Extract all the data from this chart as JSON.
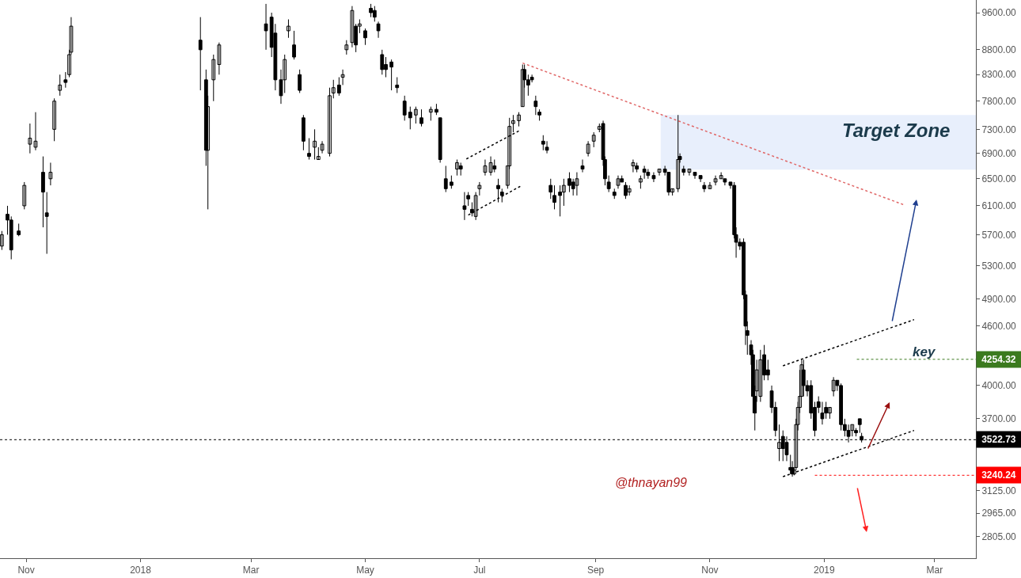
{
  "chart_data": {
    "type": "candlestick",
    "color": "#000000",
    "x": [
      "2017-10-19",
      "2017-10-22",
      "2017-10-24",
      "2017-10-28",
      "2017-10-31",
      "2017-11-03",
      "2017-11-06",
      "2017-11-10",
      "2017-11-12",
      "2017-11-14",
      "2017-11-16",
      "2017-11-19",
      "2017-11-22",
      "2017-11-24",
      "2017-11-25",
      "2018-02-02",
      "2018-02-05",
      "2018-02-06",
      "2018-02-09",
      "2018-02-12",
      "2018-03-09",
      "2018-03-12",
      "2018-03-14",
      "2018-03-17",
      "2018-03-19",
      "2018-03-21",
      "2018-03-24",
      "2018-03-27",
      "2018-03-29",
      "2018-04-01",
      "2018-04-04",
      "2018-04-06",
      "2018-04-08",
      "2018-04-12",
      "2018-04-14",
      "2018-04-17",
      "2018-04-19",
      "2018-04-21",
      "2018-04-24",
      "2018-04-26",
      "2018-04-28",
      "2018-05-01",
      "2018-05-04",
      "2018-05-06",
      "2018-05-08",
      "2018-05-10",
      "2018-05-12",
      "2018-05-15",
      "2018-05-18",
      "2018-05-22",
      "2018-05-25",
      "2018-05-28",
      "2018-05-31",
      "2018-06-05",
      "2018-06-08",
      "2018-06-10",
      "2018-06-13",
      "2018-06-16",
      "2018-06-19",
      "2018-06-21",
      "2018-06-23",
      "2018-06-25",
      "2018-06-27",
      "2018-06-29",
      "2018-07-01",
      "2018-07-04",
      "2018-07-07",
      "2018-07-09",
      "2018-07-11",
      "2018-07-13",
      "2018-07-16",
      "2018-07-17",
      "2018-07-19",
      "2018-07-22",
      "2018-07-24",
      "2018-07-25",
      "2018-07-27",
      "2018-07-29",
      "2018-07-31",
      "2018-08-02",
      "2018-08-04",
      "2018-08-06",
      "2018-08-08",
      "2018-08-10",
      "2018-08-13",
      "2018-08-15",
      "2018-08-18",
      "2018-08-20",
      "2018-08-22",
      "2018-08-25",
      "2018-08-28",
      "2018-08-31",
      "2018-09-03",
      "2018-09-05",
      "2018-09-06",
      "2018-09-08",
      "2018-09-11",
      "2018-09-13",
      "2018-09-15",
      "2018-09-17",
      "2018-09-19",
      "2018-09-21",
      "2018-09-23",
      "2018-09-25",
      "2018-09-27",
      "2018-09-29",
      "2018-10-02",
      "2018-10-05",
      "2018-10-08",
      "2018-10-10",
      "2018-10-12",
      "2018-10-15",
      "2018-10-16",
      "2018-10-18",
      "2018-10-21",
      "2018-10-24",
      "2018-10-27",
      "2018-10-29",
      "2018-11-01",
      "2018-11-04",
      "2018-11-07",
      "2018-11-09",
      "2018-11-12",
      "2018-11-14",
      "2018-11-15",
      "2018-11-17",
      "2018-11-19",
      "2018-11-20",
      "2018-11-21",
      "2018-11-23",
      "2018-11-24",
      "2018-11-25",
      "2018-11-26",
      "2018-11-28",
      "2018-11-30",
      "2018-12-02",
      "2018-12-04",
      "2018-12-06",
      "2018-12-08",
      "2018-12-10",
      "2018-12-12",
      "2018-12-14",
      "2018-12-15",
      "2018-12-16",
      "2018-12-17",
      "2018-12-18",
      "2018-12-19",
      "2018-12-20",
      "2018-12-21",
      "2018-12-23",
      "2018-12-25",
      "2018-12-27",
      "2018-12-29",
      "2018-12-31",
      "2019-01-02",
      "2019-01-04",
      "2019-01-06",
      "2019-01-08",
      "2019-01-10",
      "2019-01-12",
      "2019-01-14",
      "2019-01-16",
      "2019-01-18",
      "2019-01-20",
      "2019-01-21"
    ],
    "ohlc": [
      [
        5550,
        5750,
        5500,
        5700
      ],
      [
        5980,
        6100,
        5700,
        5900
      ],
      [
        5900,
        5950,
        5380,
        5500
      ],
      [
        5750,
        5850,
        5680,
        5700
      ],
      [
        6100,
        6450,
        6050,
        6400
      ],
      [
        7050,
        7400,
        6900,
        7150
      ],
      [
        7000,
        7600,
        6950,
        7100
      ],
      [
        6600,
        6850,
        5800,
        6300
      ],
      [
        6000,
        6300,
        5450,
        5950
      ],
      [
        6500,
        6750,
        6400,
        6600
      ],
      [
        7300,
        7850,
        7100,
        7800
      ],
      [
        8000,
        8300,
        7900,
        8100
      ],
      [
        8200,
        8350,
        8050,
        8150
      ],
      [
        8300,
        8800,
        8250,
        8700
      ],
      [
        8750,
        9500,
        8700,
        9300
      ],
      [
        9000,
        9500,
        8000,
        8800
      ],
      [
        8200,
        8400,
        6700,
        6950
      ],
      [
        6950,
        7900,
        6050,
        7700
      ],
      [
        8200,
        8700,
        7800,
        8600
      ],
      [
        8500,
        8950,
        8300,
        8900
      ],
      [
        9350,
        9800,
        8800,
        9200
      ],
      [
        9500,
        9600,
        8650,
        8850
      ],
      [
        9150,
        9350,
        8000,
        8200
      ],
      [
        8200,
        8400,
        7750,
        7900
      ],
      [
        8200,
        8700,
        7950,
        8600
      ],
      [
        9200,
        9450,
        9050,
        9300
      ],
      [
        8900,
        9200,
        8600,
        8650
      ],
      [
        8300,
        8400,
        7950,
        8000
      ],
      [
        7500,
        7550,
        6950,
        7100
      ],
      [
        6900,
        7150,
        6800,
        6850
      ],
      [
        7000,
        7300,
        6800,
        7100
      ],
      [
        6800,
        7000,
        6800,
        6850
      ],
      [
        6950,
        7100,
        6900,
        7050
      ],
      [
        6900,
        8050,
        6850,
        7900
      ],
      [
        7950,
        8200,
        7850,
        8050
      ],
      [
        8100,
        8250,
        7900,
        7950
      ],
      [
        8250,
        8400,
        8100,
        8300
      ],
      [
        8800,
        9000,
        8700,
        8900
      ],
      [
        8950,
        9750,
        8850,
        9650
      ],
      [
        9300,
        9350,
        8750,
        8900
      ],
      [
        9300,
        9450,
        9150,
        9350
      ],
      [
        9200,
        9250,
        8900,
        9050
      ],
      [
        9700,
        9800,
        9500,
        9600
      ],
      [
        9650,
        9750,
        9400,
        9500
      ],
      [
        9350,
        9400,
        9050,
        9200
      ],
      [
        8700,
        8800,
        8300,
        8400
      ],
      [
        8500,
        8650,
        8250,
        8400
      ],
      [
        8550,
        8600,
        8000,
        8450
      ],
      [
        8100,
        8250,
        7950,
        8050
      ],
      [
        7800,
        7900,
        7450,
        7550
      ],
      [
        7600,
        7700,
        7300,
        7500
      ],
      [
        7550,
        7700,
        7400,
        7650
      ],
      [
        7500,
        7650,
        7350,
        7400
      ],
      [
        7600,
        7700,
        7450,
        7650
      ],
      [
        7650,
        7750,
        7550,
        7600
      ],
      [
        7500,
        7500,
        6750,
        6800
      ],
      [
        6500,
        6700,
        6300,
        6350
      ],
      [
        6450,
        6550,
        6350,
        6400
      ],
      [
        6650,
        6800,
        6550,
        6750
      ],
      [
        6700,
        6750,
        6550,
        6650
      ],
      [
        6100,
        6300,
        5900,
        6050
      ],
      [
        6250,
        6300,
        6100,
        6200
      ],
      [
        6050,
        6150,
        5950,
        6000
      ],
      [
        5950,
        6300,
        5900,
        6250
      ],
      [
        6350,
        6450,
        6250,
        6400
      ],
      [
        6600,
        6800,
        6550,
        6700
      ],
      [
        6600,
        6850,
        6550,
        6750
      ],
      [
        6700,
        6800,
        6600,
        6650
      ],
      [
        6400,
        6500,
        6150,
        6350
      ],
      [
        6300,
        6350,
        6150,
        6250
      ],
      [
        6400,
        6700,
        6350,
        6700
      ],
      [
        6700,
        7500,
        6650,
        7350
      ],
      [
        7400,
        7550,
        7250,
        7450
      ],
      [
        7450,
        7600,
        7350,
        7550
      ],
      [
        7700,
        8500,
        7700,
        8400
      ],
      [
        8400,
        8500,
        8050,
        8200
      ],
      [
        8200,
        8300,
        7900,
        8100
      ],
      [
        8250,
        8300,
        8150,
        8200
      ],
      [
        7800,
        7900,
        7550,
        7700
      ],
      [
        7600,
        7650,
        7450,
        7550
      ],
      [
        7100,
        7200,
        6950,
        7050
      ],
      [
        7000,
        7100,
        6900,
        6950
      ],
      [
        6400,
        6500,
        6200,
        6300
      ],
      [
        6250,
        6400,
        6050,
        6150
      ],
      [
        6300,
        6400,
        5950,
        6250
      ],
      [
        6300,
        6500,
        6100,
        6400
      ],
      [
        6500,
        6600,
        6300,
        6400
      ],
      [
        6450,
        6500,
        6250,
        6350
      ],
      [
        6400,
        6600,
        6250,
        6500
      ],
      [
        6700,
        6800,
        6600,
        6650
      ],
      [
        6900,
        7100,
        6850,
        7050
      ],
      [
        7100,
        7250,
        7000,
        7200
      ],
      [
        7300,
        7400,
        7250,
        7350
      ],
      [
        7400,
        7450,
        6700,
        6800
      ],
      [
        6800,
        6850,
        6400,
        6500
      ],
      [
        6450,
        6550,
        6300,
        6350
      ],
      [
        6300,
        6350,
        6200,
        6250
      ],
      [
        6400,
        6550,
        6350,
        6500
      ],
      [
        6500,
        6550,
        6450,
        6450
      ],
      [
        6400,
        6450,
        6200,
        6250
      ],
      [
        6300,
        6400,
        6250,
        6350
      ],
      [
        6700,
        6800,
        6600,
        6750
      ],
      [
        6700,
        6750,
        6600,
        6650
      ],
      [
        6450,
        6550,
        6350,
        6500
      ],
      [
        6650,
        6700,
        6500,
        6600
      ],
      [
        6600,
        6650,
        6500,
        6550
      ],
      [
        6550,
        6600,
        6450,
        6500
      ],
      [
        6600,
        6650,
        6550,
        6650
      ],
      [
        6650,
        6700,
        6550,
        6600
      ],
      [
        6600,
        6600,
        6250,
        6300
      ],
      [
        6300,
        6350,
        6250,
        6350
      ],
      [
        6350,
        7550,
        6300,
        6800
      ],
      [
        6850,
        6900,
        6750,
        6800
      ],
      [
        6650,
        6700,
        6550,
        6600
      ],
      [
        6600,
        6650,
        6550,
        6650
      ],
      [
        6600,
        6600,
        6500,
        6550
      ],
      [
        6550,
        6550,
        6450,
        6500
      ],
      [
        6400,
        6450,
        6300,
        6350
      ],
      [
        6350,
        6450,
        6350,
        6400
      ],
      [
        6450,
        6550,
        6400,
        6500
      ],
      [
        6500,
        6600,
        6500,
        6550
      ],
      [
        6500,
        6500,
        6400,
        6450
      ],
      [
        6450,
        6450,
        6350,
        6400
      ],
      [
        6400,
        6450,
        5650,
        5700
      ],
      [
        5700,
        5800,
        5400,
        5600
      ],
      [
        5600,
        5650,
        5500,
        5550
      ],
      [
        5600,
        5650,
        4900,
        4950
      ],
      [
        4950,
        5000,
        4400,
        4600
      ],
      [
        4550,
        4650,
        4300,
        4500
      ],
      [
        4400,
        4450,
        4200,
        4300
      ],
      [
        4300,
        4350,
        3750,
        3900
      ],
      [
        3900,
        4000,
        3600,
        3750
      ],
      [
        3950,
        4250,
        3850,
        4150
      ],
      [
        3900,
        4350,
        3850,
        4250
      ],
      [
        4300,
        4400,
        4050,
        4100
      ],
      [
        4150,
        4250,
        4050,
        4100
      ],
      [
        3950,
        4000,
        3750,
        3800
      ],
      [
        3800,
        3850,
        3550,
        3600
      ],
      [
        3450,
        3650,
        3350,
        3500
      ],
      [
        3550,
        3600,
        3350,
        3450
      ],
      [
        3500,
        3550,
        3350,
        3400
      ],
      [
        3300,
        3400,
        3250,
        3280
      ],
      [
        3300,
        3350,
        3230,
        3250
      ],
      [
        3250,
        3300,
        3240,
        3280
      ],
      [
        3300,
        3700,
        3280,
        3650
      ],
      [
        3650,
        3850,
        3600,
        3800
      ],
      [
        3800,
        4150,
        3750,
        3900
      ],
      [
        3900,
        4250,
        3900,
        4200
      ],
      [
        4150,
        4250,
        3900,
        4000
      ],
      [
        4000,
        4050,
        3900,
        3950
      ],
      [
        4000,
        4050,
        3700,
        3750
      ],
      [
        3800,
        3850,
        3550,
        3600
      ],
      [
        3850,
        3900,
        3750,
        3800
      ],
      [
        3750,
        3850,
        3650,
        3700
      ],
      [
        3800,
        3850,
        3700,
        3750
      ],
      [
        3750,
        3800,
        3700,
        3800
      ],
      [
        3950,
        4080,
        3900,
        4050
      ],
      [
        4050,
        4050,
        3950,
        4000
      ],
      [
        4000,
        4020,
        3600,
        3650
      ],
      [
        3650,
        3700,
        3550,
        3600
      ],
      [
        3600,
        3650,
        3500,
        3550
      ],
      [
        3600,
        3650,
        3550,
        3650
      ],
      [
        3600,
        3620,
        3550,
        3580
      ],
      [
        3700,
        3700,
        3580,
        3650
      ],
      [
        3550,
        3580,
        3500,
        3520
      ]
    ],
    "series": [
      {
        "type": "line",
        "color": "#e06666",
        "line_style": "dotted",
        "x": [
          "2018-07-24",
          "2019-02-13"
        ],
        "values": [
          8530,
          6110
        ]
      },
      {
        "type": "line",
        "color": "#000000",
        "line_style": "dotted",
        "x": [
          "2018-06-24",
          "2018-07-23"
        ],
        "values": [
          6810,
          7290
        ]
      },
      {
        "type": "line",
        "color": "#000000",
        "line_style": "dotted",
        "x": [
          "2018-06-25",
          "2018-07-23"
        ],
        "values": [
          5970,
          6390
        ]
      },
      {
        "type": "line",
        "color": "#000000",
        "line_style": "dotted",
        "x": [
          "2018-12-10",
          "2019-02-18"
        ],
        "values": [
          4190,
          4670
        ]
      },
      {
        "type": "line",
        "color": "#000000",
        "line_style": "dotted",
        "x": [
          "2018-12-10",
          "2019-02-18"
        ],
        "values": [
          3230,
          3600
        ]
      }
    ],
    "xlim": [
      "2017-10-18",
      "2019-03-23"
    ],
    "xticks": [
      {
        "value": "2017-11-01",
        "label": "Nov"
      },
      {
        "value": "2018-01-01",
        "label": "2018"
      },
      {
        "value": "2018-03-01",
        "label": "Mar"
      },
      {
        "value": "2018-05-01",
        "label": "May"
      },
      {
        "value": "2018-07-01",
        "label": "Jul"
      },
      {
        "value": "2018-09-01",
        "label": "Sep"
      },
      {
        "value": "2018-11-01",
        "label": "Nov"
      },
      {
        "value": "2019-01-01",
        "label": "2019"
      },
      {
        "value": "2019-03-01",
        "label": "Mar"
      }
    ],
    "ylim": [
      2667,
      9890
    ],
    "log": true,
    "yticks": [
      {
        "value": 2805,
        "label": "2805.00"
      },
      {
        "value": 2965,
        "label": "2965.00"
      },
      {
        "value": 3125,
        "label": "3125.00"
      },
      {
        "value": 3700,
        "label": "3700.00"
      },
      {
        "value": 4000,
        "label": "4000.00"
      },
      {
        "value": 4600,
        "label": "4600.00"
      },
      {
        "value": 4900,
        "label": "4900.00"
      },
      {
        "value": 5300,
        "label": "5300.00"
      },
      {
        "value": 5700,
        "label": "5700.00"
      },
      {
        "value": 6100,
        "label": "6100.00"
      },
      {
        "value": 6500,
        "label": "6500.00"
      },
      {
        "value": 6900,
        "label": "6900.00"
      },
      {
        "value": 7300,
        "label": "7300.00"
      },
      {
        "value": 7800,
        "label": "7800.00"
      },
      {
        "value": 8300,
        "label": "8300.00"
      },
      {
        "value": 8800,
        "label": "8800.00"
      },
      {
        "value": 9600,
        "label": "9600.00"
      }
    ],
    "ref_lines": [
      {
        "axis": "y",
        "value": 4254.32,
        "label": "4254.32",
        "color": "#3b7a1e",
        "line_style": "dotted"
      },
      {
        "axis": "y",
        "value": 3522.73,
        "label": "3522.73",
        "color": "#000000",
        "line_style": "dotted"
      },
      {
        "axis": "y",
        "value": 3240.24,
        "label": "3240.24",
        "color": "#ff0000",
        "line_style": "dotted"
      }
    ],
    "bands": [
      {
        "axis": "y",
        "from": 6640,
        "to": 7550,
        "label": "Target Zone",
        "color": "#e8effc"
      }
    ],
    "annotations": [
      "key",
      "@thnayan99"
    ],
    "grid": false
  }
}
